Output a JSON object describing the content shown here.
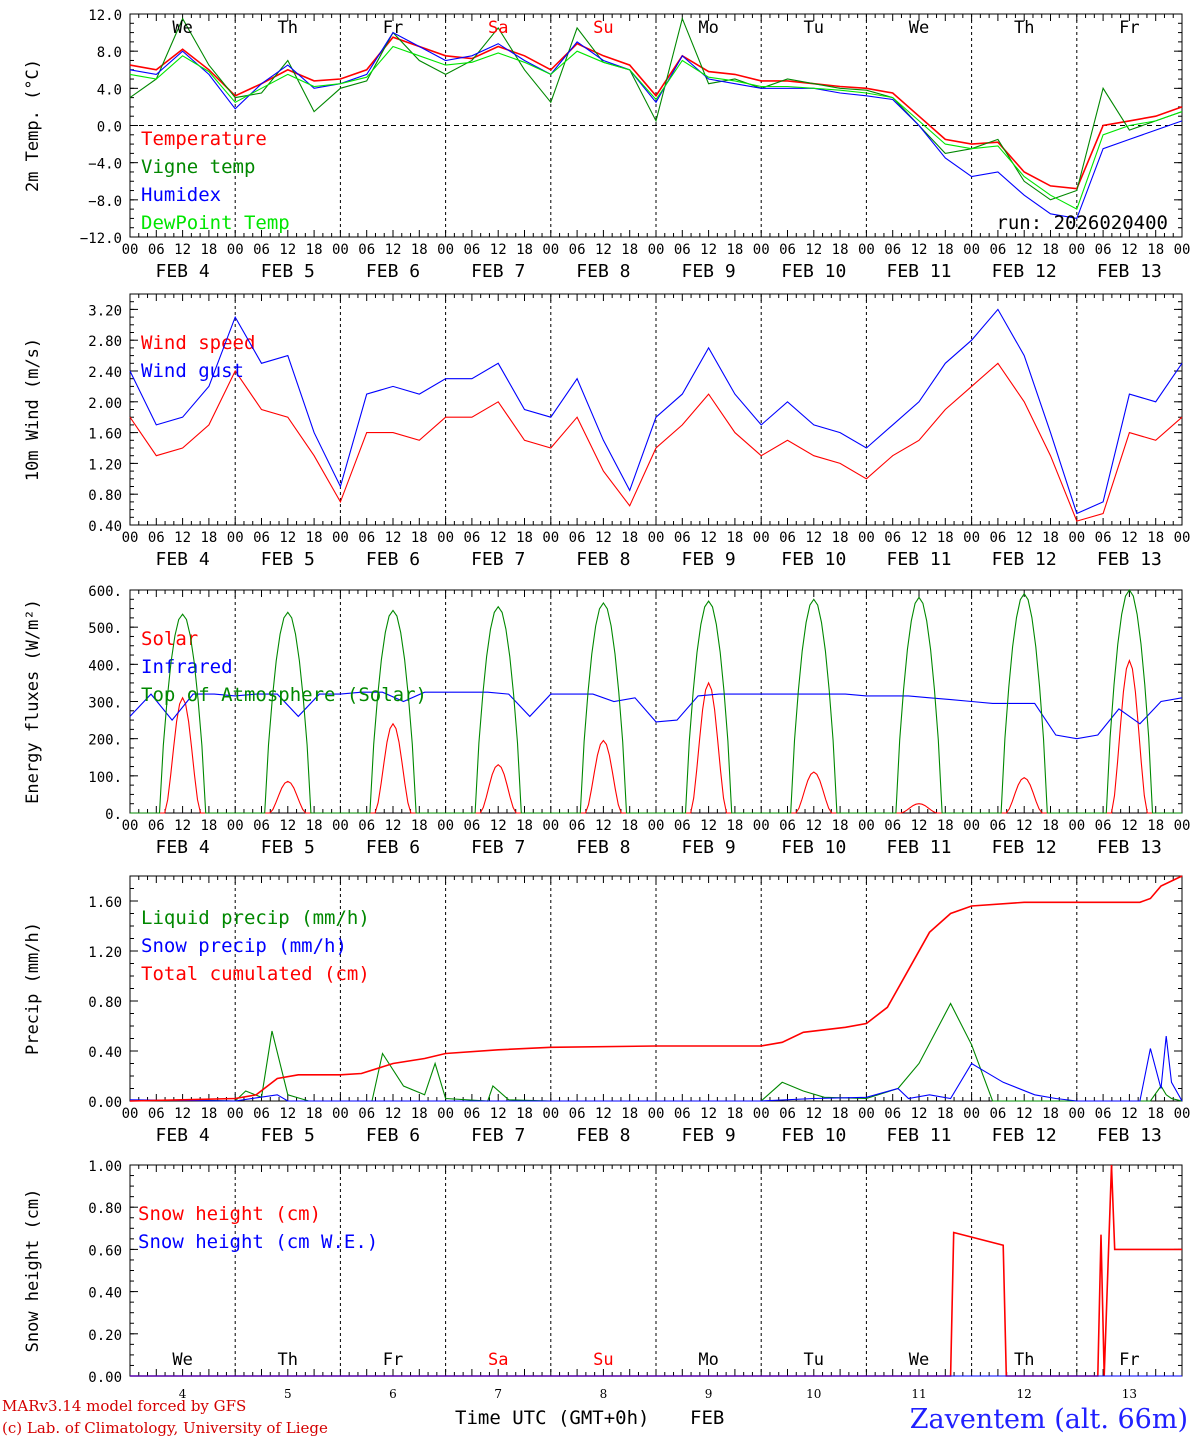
{
  "colors": {
    "red": "#ff0000",
    "green": "#008800",
    "blue": "#0000ff",
    "lightgreen": "#00e600",
    "darkred": "#d40000",
    "station": "#2020ff"
  },
  "days": {
    "names": [
      "We",
      "Th",
      "Fr",
      "Sa",
      "Su",
      "Mo",
      "Tu",
      "We",
      "Th",
      "Fr"
    ],
    "weekend": [
      false,
      false,
      false,
      true,
      true,
      false,
      false,
      false,
      false,
      false
    ],
    "dates": [
      "FEB  4",
      "FEB  5",
      "FEB  6",
      "FEB  7",
      "FEB  8",
      "FEB  9",
      "FEB 10",
      "FEB 11",
      "FEB 12",
      "FEB 13"
    ],
    "numbers": [
      "4",
      "5",
      "6",
      "7",
      "8",
      "9",
      "10",
      "11",
      "12",
      "13"
    ],
    "hours": [
      "00",
      "06",
      "12",
      "18"
    ],
    "final_hour": "00"
  },
  "footer": {
    "credit1": "MARv3.14 model forced by GFS",
    "credit2": "(c) Lab. of Climatology, University of Liege",
    "xlabel": "Time UTC (GMT+0h)",
    "month": "FEB",
    "station": "Zaventem (alt. 66m)"
  },
  "chart_data": [
    {
      "id": "temp",
      "type": "line",
      "ylabel": "2m Temp. (°C)",
      "ylim": [
        -12,
        12
      ],
      "yticks": [
        "12.0",
        "8.0",
        "4.0",
        "0.0",
        "−4.0",
        "−8.0",
        "−12.0"
      ],
      "yticks_values": [
        12,
        8,
        4,
        0,
        -4,
        -8,
        -12
      ],
      "run_label": "run: 2026020400",
      "zero_line": true,
      "x_days": [
        0,
        0.25,
        0.5,
        0.75,
        1,
        1.25,
        1.5,
        1.75,
        2,
        2.25,
        2.5,
        2.75,
        3,
        3.25,
        3.5,
        3.75,
        4,
        4.25,
        4.5,
        4.75,
        5,
        5.25,
        5.5,
        5.75,
        6,
        6.25,
        6.5,
        6.75,
        7,
        7.25,
        7.5,
        7.75,
        8,
        8.25,
        8.5,
        8.75,
        9,
        9.25,
        9.5,
        9.75,
        10
      ],
      "series": [
        {
          "name": "Temperature",
          "color": "#ff0000",
          "values": [
            6.5,
            6.0,
            8.2,
            6.0,
            3.2,
            4.5,
            6.0,
            4.8,
            5.0,
            6.0,
            9.5,
            8.5,
            7.5,
            7.2,
            8.5,
            7.5,
            6.0,
            8.8,
            7.5,
            6.5,
            3.2,
            7.5,
            5.8,
            5.5,
            4.8,
            4.8,
            4.5,
            4.2,
            4.0,
            3.5,
            1.0,
            -1.5,
            -2.0,
            -1.8,
            -5.0,
            -6.5,
            -6.8,
            0.0,
            0.5,
            1.0,
            2.0
          ]
        },
        {
          "name": "Vigne temp",
          "color": "#008800",
          "values": [
            3.0,
            5.0,
            11.5,
            6.5,
            3.0,
            3.5,
            7.0,
            1.5,
            4.0,
            4.8,
            10.0,
            7.0,
            5.5,
            7.0,
            10.5,
            6.0,
            2.5,
            10.5,
            6.8,
            6.0,
            0.5,
            11.5,
            4.5,
            5.0,
            4.0,
            5.0,
            4.5,
            4.0,
            3.8,
            3.0,
            0.0,
            -3.0,
            -2.5,
            -1.5,
            -6.0,
            -8.0,
            -7.0,
            4.0,
            -0.5,
            0.5,
            1.5
          ]
        },
        {
          "name": "Humidex",
          "color": "#0000ff",
          "values": [
            6.0,
            5.5,
            8.0,
            5.5,
            1.8,
            4.5,
            6.5,
            4.0,
            4.5,
            5.5,
            10.0,
            8.5,
            7.0,
            7.5,
            8.8,
            7.0,
            5.5,
            9.0,
            7.0,
            6.0,
            2.5,
            7.5,
            5.0,
            4.5,
            4.0,
            4.0,
            4.0,
            3.5,
            3.2,
            2.8,
            0.0,
            -3.5,
            -5.5,
            -5.0,
            -7.5,
            -9.5,
            -10.0,
            -2.5,
            -1.5,
            -0.5,
            0.5
          ]
        },
        {
          "name": "DewPoint Temp",
          "color": "#00e600",
          "values": [
            5.5,
            5.0,
            7.5,
            5.8,
            2.5,
            4.0,
            5.5,
            4.2,
            4.5,
            5.2,
            8.5,
            7.5,
            6.5,
            6.8,
            7.8,
            6.8,
            5.5,
            8.0,
            6.8,
            6.0,
            2.8,
            7.0,
            5.2,
            4.8,
            4.2,
            4.2,
            4.0,
            3.8,
            3.5,
            3.0,
            0.5,
            -2.0,
            -2.5,
            -2.2,
            -5.5,
            -7.5,
            -9.0,
            -1.0,
            0.0,
            0.5,
            1.5
          ]
        }
      ]
    },
    {
      "id": "wind",
      "type": "line",
      "ylabel": "10m Wind (m/s)",
      "ylim": [
        0.4,
        3.4
      ],
      "yticks": [
        "3.20",
        "2.80",
        "2.40",
        "2.00",
        "1.60",
        "1.20",
        "0.80",
        "0.40"
      ],
      "yticks_values": [
        3.2,
        2.8,
        2.4,
        2.0,
        1.6,
        1.2,
        0.8,
        0.4
      ],
      "x_days": [
        0,
        0.25,
        0.5,
        0.75,
        1,
        1.25,
        1.5,
        1.75,
        2,
        2.25,
        2.5,
        2.75,
        3,
        3.25,
        3.5,
        3.75,
        4,
        4.25,
        4.5,
        4.75,
        5,
        5.25,
        5.5,
        5.75,
        6,
        6.25,
        6.5,
        6.75,
        7,
        7.25,
        7.5,
        7.75,
        8,
        8.25,
        8.5,
        8.75,
        9,
        9.25,
        9.5,
        9.75,
        10
      ],
      "series": [
        {
          "name": "Wind speed",
          "color": "#ff0000",
          "values": [
            1.8,
            1.3,
            1.4,
            1.7,
            2.4,
            1.9,
            1.8,
            1.3,
            0.7,
            1.6,
            1.6,
            1.5,
            1.8,
            1.8,
            2.0,
            1.5,
            1.4,
            1.8,
            1.1,
            0.65,
            1.4,
            1.7,
            2.1,
            1.6,
            1.3,
            1.5,
            1.3,
            1.2,
            1.0,
            1.3,
            1.5,
            1.9,
            2.2,
            2.5,
            2.0,
            1.3,
            0.45,
            0.55,
            1.6,
            1.5,
            1.8
          ]
        },
        {
          "name": "Wind gust",
          "color": "#0000ff",
          "values": [
            2.4,
            1.7,
            1.8,
            2.2,
            3.1,
            2.5,
            2.6,
            1.6,
            0.9,
            2.1,
            2.2,
            2.1,
            2.3,
            2.3,
            2.5,
            1.9,
            1.8,
            2.3,
            1.5,
            0.85,
            1.8,
            2.1,
            2.7,
            2.1,
            1.7,
            2.0,
            1.7,
            1.6,
            1.4,
            1.7,
            2.0,
            2.5,
            2.8,
            3.2,
            2.6,
            1.6,
            0.55,
            0.7,
            2.1,
            2.0,
            2.5
          ]
        }
      ]
    },
    {
      "id": "flux",
      "type": "line",
      "ylabel": "Energy fluxes (W/m²)",
      "ylim": [
        0,
        600
      ],
      "yticks": [
        "600.",
        "500.",
        "400.",
        "300.",
        "200.",
        "100.",
        "0."
      ],
      "yticks_values": [
        600,
        500,
        400,
        300,
        200,
        100,
        0
      ],
      "series": [
        {
          "name": "Solar",
          "color": "#ff0000",
          "peaks": [
            310,
            85,
            240,
            130,
            195,
            350,
            110,
            25,
            95,
            410
          ]
        },
        {
          "name": "Infrared",
          "color": "#0000ff",
          "x_days": [
            0,
            0.2,
            0.4,
            0.6,
            0.8,
            1,
            1.2,
            1.4,
            1.6,
            1.8,
            2,
            2.2,
            2.4,
            2.6,
            2.8,
            3,
            3.2,
            3.4,
            3.6,
            3.8,
            4,
            4.2,
            4.4,
            4.6,
            4.8,
            5,
            5.2,
            5.4,
            5.6,
            5.8,
            6,
            6.2,
            6.4,
            6.6,
            6.8,
            7,
            7.2,
            7.4,
            7.6,
            7.8,
            8,
            8.2,
            8.4,
            8.6,
            8.8,
            9,
            9.2,
            9.4,
            9.6,
            9.8,
            10
          ],
          "values": [
            260,
            320,
            250,
            320,
            320,
            315,
            320,
            320,
            260,
            320,
            320,
            325,
            325,
            300,
            325,
            325,
            325,
            325,
            320,
            260,
            320,
            320,
            320,
            300,
            310,
            245,
            250,
            315,
            320,
            320,
            320,
            320,
            320,
            320,
            320,
            315,
            315,
            315,
            310,
            305,
            300,
            295,
            295,
            295,
            210,
            200,
            210,
            280,
            240,
            300,
            310
          ]
        },
        {
          "name": "Top of Atmosphere (Solar)",
          "color": "#008800",
          "peaks": [
            535,
            540,
            545,
            555,
            565,
            570,
            575,
            580,
            590,
            600
          ]
        }
      ]
    },
    {
      "id": "precip",
      "type": "line",
      "ylabel": "Precip (mm/h)",
      "ylim": [
        0,
        1.8
      ],
      "yticks": [
        "1.60",
        "1.20",
        "0.80",
        "0.40",
        "0.00"
      ],
      "yticks_values": [
        1.6,
        1.2,
        0.8,
        0.4,
        0.0
      ],
      "series": [
        {
          "name": "Liquid precip (mm/h)",
          "color": "#008800",
          "x_days": [
            0,
            0.5,
            1.0,
            1.1,
            1.25,
            1.35,
            1.5,
            1.7,
            2.0,
            2.3,
            2.4,
            2.6,
            2.8,
            2.9,
            3.0,
            3.4,
            3.45,
            3.6,
            4.0,
            5.0,
            6.0,
            6.2,
            6.4,
            6.6,
            7.0,
            7.3,
            7.5,
            7.8,
            8.0,
            8.2,
            9.0,
            9.7,
            9.8,
            9.85,
            9.9,
            10
          ],
          "values": [
            0,
            0.01,
            0,
            0.08,
            0.03,
            0.56,
            0.05,
            0,
            0,
            0,
            0.38,
            0.12,
            0.05,
            0.3,
            0.02,
            0,
            0.12,
            0.01,
            0,
            0,
            0,
            0.15,
            0.08,
            0.03,
            0.02,
            0.1,
            0.3,
            0.78,
            0.45,
            0,
            0,
            0,
            0.12,
            0.05,
            0.02,
            0
          ]
        },
        {
          "name": "Snow precip (mm/h)",
          "color": "#0000ff",
          "x_days": [
            0,
            1.0,
            1.4,
            1.5,
            2.0,
            6.0,
            6.5,
            7.0,
            7.3,
            7.4,
            7.6,
            7.8,
            8.0,
            8.1,
            8.3,
            8.6,
            8.8,
            9.0,
            9.6,
            9.7,
            9.8,
            9.85,
            9.9,
            10
          ],
          "values": [
            0.01,
            0,
            0.05,
            0,
            0,
            0,
            0.02,
            0.03,
            0.1,
            0.02,
            0.05,
            0.02,
            0.3,
            0.25,
            0.15,
            0.05,
            0.02,
            0,
            0,
            0.42,
            0.1,
            0.52,
            0.15,
            0
          ]
        },
        {
          "name": "Total cumulated (cm)",
          "color": "#ff0000",
          "x_days": [
            0,
            0.5,
            1.0,
            1.2,
            1.4,
            1.6,
            2.0,
            2.2,
            2.5,
            2.8,
            3.0,
            3.5,
            4.0,
            5.0,
            6.0,
            6.2,
            6.4,
            6.8,
            7.0,
            7.2,
            7.4,
            7.6,
            7.8,
            8.0,
            8.5,
            9.0,
            9.6,
            9.7,
            9.8,
            10
          ],
          "values": [
            0,
            0.01,
            0.02,
            0.05,
            0.18,
            0.21,
            0.21,
            0.22,
            0.3,
            0.34,
            0.38,
            0.41,
            0.43,
            0.44,
            0.44,
            0.47,
            0.55,
            0.59,
            0.62,
            0.75,
            1.05,
            1.35,
            1.5,
            1.56,
            1.59,
            1.59,
            1.59,
            1.62,
            1.72,
            1.8
          ]
        }
      ]
    },
    {
      "id": "snow",
      "type": "line",
      "ylabel": "Snow height (cm)",
      "ylim": [
        0,
        1
      ],
      "yticks": [
        "1.00",
        "0.80",
        "0.60",
        "0.40",
        "0.20",
        "0.00"
      ],
      "yticks_values": [
        1.0,
        0.8,
        0.6,
        0.4,
        0.2,
        0.0
      ],
      "series": [
        {
          "name": "Snow height (cm)",
          "color": "#ff0000",
          "x_days": [
            0,
            7.8,
            7.83,
            8.3,
            8.33,
            9.2,
            9.23,
            9.26,
            9.33,
            9.36,
            10
          ],
          "values": [
            0,
            0,
            0.68,
            0.62,
            0,
            0,
            0.67,
            0,
            1.0,
            0.6,
            0.6
          ]
        },
        {
          "name": "Snow height (cm W.E.)",
          "color": "#0000ff",
          "x_days": [
            0,
            10
          ],
          "values": [
            0,
            0
          ]
        }
      ]
    }
  ]
}
